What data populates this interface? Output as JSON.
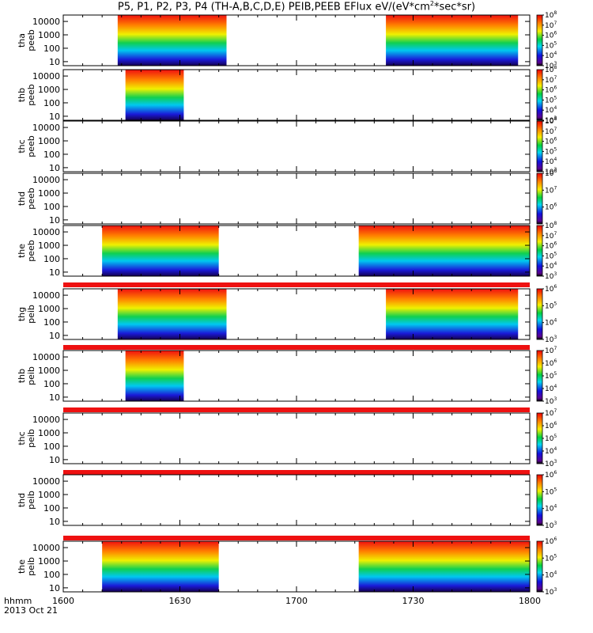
{
  "title": {
    "pre": "P5, P1, P2, P3, P4 (TH-A,B,C,D,E) PEIB,PEEB EFlux eV/(eV*cm",
    "sup": "2",
    "post": "*sec*sr)"
  },
  "footer": {
    "time_label": "hhmm",
    "date_label": "2013 Oct 21"
  },
  "x_ticks": [
    "1600",
    "1630",
    "1700",
    "1730",
    "1800"
  ],
  "y_ticks": [
    "10000",
    "1000",
    "100",
    "10"
  ],
  "chart_data": {
    "type": "heatmap",
    "x_unit": "hhmm (UT)",
    "x_range": [
      "16:00",
      "18:00"
    ],
    "y_scale": "log",
    "y_unit": "eV",
    "y_range": [
      5,
      30000
    ],
    "colorbar_scale": "log",
    "colors": {
      "background": "#ffffff",
      "separator": "#ee1111",
      "frame": "#000000"
    },
    "panels": [
      {
        "probe": "tha",
        "species": "peeb",
        "label_top": "tha",
        "label_bottom": "peeb",
        "intervals": [
          [
            "16:14",
            "16:42"
          ],
          [
            "17:23",
            "17:57"
          ]
        ],
        "cbar": {
          "range": [
            1000,
            100000000
          ],
          "labels": [
            {
              "m": "10",
              "e": "8"
            },
            {
              "m": "10",
              "e": "7"
            },
            {
              "m": "10",
              "e": "6"
            },
            {
              "m": "10",
              "e": "5"
            },
            {
              "m": "10",
              "e": "4"
            },
            {
              "m": "10",
              "e": "3"
            }
          ]
        }
      },
      {
        "probe": "thb",
        "species": "peeb",
        "label_top": "thb",
        "label_bottom": "peeb",
        "intervals": [
          [
            "16:16",
            "16:31"
          ]
        ],
        "cbar": {
          "range": [
            1000,
            100000000
          ],
          "labels": [
            {
              "m": "10",
              "e": "8"
            },
            {
              "m": "10",
              "e": "7"
            },
            {
              "m": "10",
              "e": "6"
            },
            {
              "m": "10",
              "e": "5"
            },
            {
              "m": "10",
              "e": "4"
            },
            {
              "m": "10",
              "e": "3"
            }
          ]
        }
      },
      {
        "probe": "thc",
        "species": "peeb",
        "label_top": "thc",
        "label_bottom": "peeb",
        "intervals": [],
        "cbar": {
          "range": [
            1000,
            100000000
          ],
          "labels": [
            {
              "m": "10",
              "e": "8"
            },
            {
              "m": "10",
              "e": "7"
            },
            {
              "m": "10",
              "e": "6"
            },
            {
              "m": "10",
              "e": "5"
            },
            {
              "m": "10",
              "e": "4"
            },
            {
              "m": "10",
              "e": "3"
            }
          ]
        }
      },
      {
        "probe": "thd",
        "species": "peeb",
        "label_top": "thd",
        "label_bottom": "peeb",
        "intervals": [],
        "cbar": {
          "range": [
            100000,
            100000000
          ],
          "labels": [
            {
              "m": "10",
              "e": "8"
            },
            {
              "m": "10",
              "e": "7"
            },
            {
              "m": "10",
              "e": "6"
            }
          ]
        }
      },
      {
        "probe": "the",
        "species": "peeb",
        "label_top": "the",
        "label_bottom": "peeb",
        "intervals": [
          [
            "16:10",
            "16:40"
          ],
          [
            "17:16",
            "18:00"
          ]
        ],
        "cbar": {
          "range": [
            1000,
            100000000
          ],
          "labels": [
            {
              "m": "10",
              "e": "8"
            },
            {
              "m": "10",
              "e": "7"
            },
            {
              "m": "10",
              "e": "6"
            },
            {
              "m": "10",
              "e": "5"
            },
            {
              "m": "10",
              "e": "4"
            },
            {
              "m": "10",
              "e": "3"
            }
          ]
        }
      },
      {
        "probe": "thg",
        "species": "peib",
        "label_top": "thg",
        "label_bottom": "peib",
        "intervals": [
          [
            "16:14",
            "16:42"
          ],
          [
            "17:23",
            "17:57"
          ]
        ],
        "cbar": {
          "range": [
            1000,
            1000000
          ],
          "labels": [
            {
              "m": "10",
              "e": "6"
            },
            {
              "m": "10",
              "e": "5"
            },
            {
              "m": "10",
              "e": "4"
            },
            {
              "m": "10",
              "e": "3"
            }
          ]
        }
      },
      {
        "probe": "thb",
        "species": "peib",
        "label_top": "thb",
        "label_bottom": "peib",
        "intervals": [
          [
            "16:16",
            "16:31"
          ]
        ],
        "cbar": {
          "range": [
            1000,
            10000000
          ],
          "labels": [
            {
              "m": "10",
              "e": "7"
            },
            {
              "m": "10",
              "e": "6"
            },
            {
              "m": "10",
              "e": "5"
            },
            {
              "m": "10",
              "e": "4"
            },
            {
              "m": "10",
              "e": "3"
            }
          ]
        }
      },
      {
        "probe": "thc",
        "species": "peib",
        "label_top": "thc",
        "label_bottom": "peib",
        "intervals": [],
        "cbar": {
          "range": [
            1000,
            10000000
          ],
          "labels": [
            {
              "m": "10",
              "e": "7"
            },
            {
              "m": "10",
              "e": "6"
            },
            {
              "m": "10",
              "e": "5"
            },
            {
              "m": "10",
              "e": "4"
            },
            {
              "m": "10",
              "e": "3"
            }
          ]
        }
      },
      {
        "probe": "thd",
        "species": "peib",
        "label_top": "thd",
        "label_bottom": "peib",
        "intervals": [],
        "cbar": {
          "range": [
            1000,
            1000000
          ],
          "labels": [
            {
              "m": "10",
              "e": "6"
            },
            {
              "m": "10",
              "e": "5"
            },
            {
              "m": "10",
              "e": "4"
            },
            {
              "m": "10",
              "e": "3"
            }
          ]
        }
      },
      {
        "probe": "the",
        "species": "peib",
        "label_top": "the",
        "label_bottom": "peib",
        "intervals": [
          [
            "16:10",
            "16:40"
          ],
          [
            "17:16",
            "18:00"
          ]
        ],
        "cbar": {
          "range": [
            1000,
            1000000
          ],
          "labels": [
            {
              "m": "10",
              "e": "6"
            },
            {
              "m": "10",
              "e": "5"
            },
            {
              "m": "10",
              "e": "4"
            },
            {
              "m": "10",
              "e": "3"
            }
          ]
        }
      }
    ]
  }
}
